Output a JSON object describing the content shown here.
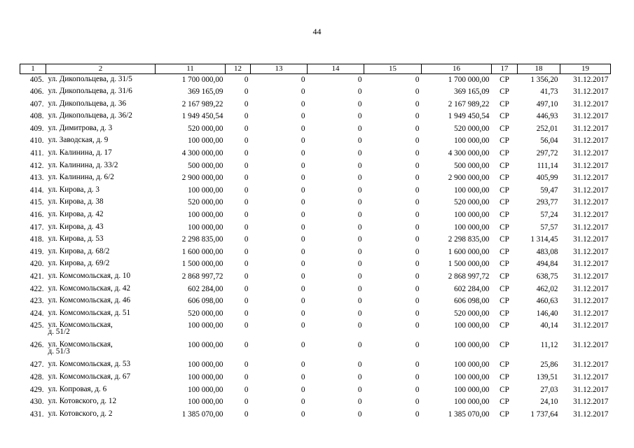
{
  "page_number": "44",
  "header_cells": [
    "1",
    "2",
    "11",
    "12",
    "13",
    "14",
    "15",
    "16",
    "17",
    "18",
    "19"
  ],
  "rows": [
    {
      "n": "405.",
      "addr": "ул. Дикопольцева, д. 31/5",
      "c11": "1 700 000,00",
      "c12": "0",
      "c13": "0",
      "c14": "0",
      "c15": "0",
      "c16": "1 700 000,00",
      "c17": "СР",
      "c18": "1 356,20",
      "c19": "31.12.2017"
    },
    {
      "n": "406.",
      "addr": "ул. Дикопольцева, д. 31/6",
      "c11": "369 165,09",
      "c12": "0",
      "c13": "0",
      "c14": "0",
      "c15": "0",
      "c16": "369 165,09",
      "c17": "СР",
      "c18": "41,73",
      "c19": "31.12.2017"
    },
    {
      "n": "407.",
      "addr": "ул. Дикопольцева, д. 36",
      "c11": "2 167 989,22",
      "c12": "0",
      "c13": "0",
      "c14": "0",
      "c15": "0",
      "c16": "2 167 989,22",
      "c17": "СР",
      "c18": "497,10",
      "c19": "31.12.2017"
    },
    {
      "n": "408.",
      "addr": "ул. Дикопольцева, д. 36/2",
      "c11": "1 949 450,54",
      "c12": "0",
      "c13": "0",
      "c14": "0",
      "c15": "0",
      "c16": "1 949 450,54",
      "c17": "СР",
      "c18": "446,93",
      "c19": "31.12.2017"
    },
    {
      "n": "409.",
      "addr": "ул. Димитрова, д. 3",
      "c11": "520 000,00",
      "c12": "0",
      "c13": "0",
      "c14": "0",
      "c15": "0",
      "c16": "520 000,00",
      "c17": "СР",
      "c18": "252,01",
      "c19": "31.12.2017"
    },
    {
      "n": "410.",
      "addr": "ул. Заводская, д. 9",
      "c11": "100 000,00",
      "c12": "0",
      "c13": "0",
      "c14": "0",
      "c15": "0",
      "c16": "100 000,00",
      "c17": "СР",
      "c18": "56,04",
      "c19": "31.12.2017"
    },
    {
      "n": "411.",
      "addr": "ул. Калинина, д. 17",
      "c11": "4 300 000,00",
      "c12": "0",
      "c13": "0",
      "c14": "0",
      "c15": "0",
      "c16": "4 300 000,00",
      "c17": "СР",
      "c18": "297,72",
      "c19": "31.12.2017"
    },
    {
      "n": "412.",
      "addr": "ул. Калинина, д. 33/2",
      "c11": "500 000,00",
      "c12": "0",
      "c13": "0",
      "c14": "0",
      "c15": "0",
      "c16": "500 000,00",
      "c17": "СР",
      "c18": "111,14",
      "c19": "31.12.2017"
    },
    {
      "n": "413.",
      "addr": "ул. Калинина, д. 6/2",
      "c11": "2 900 000,00",
      "c12": "0",
      "c13": "0",
      "c14": "0",
      "c15": "0",
      "c16": "2 900 000,00",
      "c17": "СР",
      "c18": "405,99",
      "c19": "31.12.2017"
    },
    {
      "n": "414.",
      "addr": "ул. Кирова, д. 3",
      "c11": "100 000,00",
      "c12": "0",
      "c13": "0",
      "c14": "0",
      "c15": "0",
      "c16": "100 000,00",
      "c17": "СР",
      "c18": "59,47",
      "c19": "31.12.2017"
    },
    {
      "n": "415.",
      "addr": "ул. Кирова, д. 38",
      "c11": "520 000,00",
      "c12": "0",
      "c13": "0",
      "c14": "0",
      "c15": "0",
      "c16": "520 000,00",
      "c17": "СР",
      "c18": "293,77",
      "c19": "31.12.2017"
    },
    {
      "n": "416.",
      "addr": "ул. Кирова, д. 42",
      "c11": "100 000,00",
      "c12": "0",
      "c13": "0",
      "c14": "0",
      "c15": "0",
      "c16": "100 000,00",
      "c17": "СР",
      "c18": "57,24",
      "c19": "31.12.2017"
    },
    {
      "n": "417.",
      "addr": "ул. Кирова, д. 43",
      "c11": "100 000,00",
      "c12": "0",
      "c13": "0",
      "c14": "0",
      "c15": "0",
      "c16": "100 000,00",
      "c17": "СР",
      "c18": "57,57",
      "c19": "31.12.2017"
    },
    {
      "n": "418.",
      "addr": "ул. Кирова, д. 53",
      "c11": "2 298 835,00",
      "c12": "0",
      "c13": "0",
      "c14": "0",
      "c15": "0",
      "c16": "2 298 835,00",
      "c17": "СР",
      "c18": "1 314,45",
      "c19": "31.12.2017"
    },
    {
      "n": "419.",
      "addr": "ул. Кирова, д. 68/2",
      "c11": "1 600 000,00",
      "c12": "0",
      "c13": "0",
      "c14": "0",
      "c15": "0",
      "c16": "1 600 000,00",
      "c17": "СР",
      "c18": "483,08",
      "c19": "31.12.2017"
    },
    {
      "n": "420.",
      "addr": "ул. Кирова, д. 69/2",
      "c11": "1 500 000,00",
      "c12": "0",
      "c13": "0",
      "c14": "0",
      "c15": "0",
      "c16": "1 500 000,00",
      "c17": "СР",
      "c18": "494,84",
      "c19": "31.12.2017"
    },
    {
      "n": "421.",
      "addr": "ул. Комсомольская, д. 10",
      "c11": "2 868 997,72",
      "c12": "0",
      "c13": "0",
      "c14": "0",
      "c15": "0",
      "c16": "2 868 997,72",
      "c17": "СР",
      "c18": "638,75",
      "c19": "31.12.2017"
    },
    {
      "n": "422.",
      "addr": "ул. Комсомольская, д. 42",
      "c11": "602 284,00",
      "c12": "0",
      "c13": "0",
      "c14": "0",
      "c15": "0",
      "c16": "602 284,00",
      "c17": "СР",
      "c18": "462,02",
      "c19": "31.12.2017"
    },
    {
      "n": "423.",
      "addr": "ул. Комсомольская, д. 46",
      "c11": "606 098,00",
      "c12": "0",
      "c13": "0",
      "c14": "0",
      "c15": "0",
      "c16": "606 098,00",
      "c17": "СР",
      "c18": "460,63",
      "c19": "31.12.2017"
    },
    {
      "n": "424.",
      "addr": "ул. Комсомольская, д. 51",
      "c11": "520 000,00",
      "c12": "0",
      "c13": "0",
      "c14": "0",
      "c15": "0",
      "c16": "520 000,00",
      "c17": "СР",
      "c18": "146,40",
      "c19": "31.12.2017"
    },
    {
      "n": "425.",
      "addr": "ул. Комсомольская,\nд. 51/2",
      "c11": "100 000,00",
      "c12": "0",
      "c13": "0",
      "c14": "0",
      "c15": "0",
      "c16": "100 000,00",
      "c17": "СР",
      "c18": "40,14",
      "c19": "31.12.2017"
    },
    {
      "n": "426.",
      "addr": "ул. Комсомольская,\nд. 51/3",
      "c11": "100 000,00",
      "c12": "0",
      "c13": "0",
      "c14": "0",
      "c15": "0",
      "c16": "100 000,00",
      "c17": "СР",
      "c18": "11,12",
      "c19": "31.12.2017"
    },
    {
      "n": "427.",
      "addr": "ул. Комсомольская, д. 53",
      "c11": "100 000,00",
      "c12": "0",
      "c13": "0",
      "c14": "0",
      "c15": "0",
      "c16": "100 000,00",
      "c17": "СР",
      "c18": "25,86",
      "c19": "31.12.2017"
    },
    {
      "n": "428.",
      "addr": "ул. Комсомольская, д. 67",
      "c11": "100 000,00",
      "c12": "0",
      "c13": "0",
      "c14": "0",
      "c15": "0",
      "c16": "100 000,00",
      "c17": "СР",
      "c18": "139,51",
      "c19": "31.12.2017"
    },
    {
      "n": "429.",
      "addr": "ул. Копровая, д. 6",
      "c11": "100 000,00",
      "c12": "0",
      "c13": "0",
      "c14": "0",
      "c15": "0",
      "c16": "100 000,00",
      "c17": "СР",
      "c18": "27,03",
      "c19": "31.12.2017"
    },
    {
      "n": "430.",
      "addr": "ул. Котовского, д. 12",
      "c11": "100 000,00",
      "c12": "0",
      "c13": "0",
      "c14": "0",
      "c15": "0",
      "c16": "100 000,00",
      "c17": "СР",
      "c18": "24,10",
      "c19": "31.12.2017"
    },
    {
      "n": "431.",
      "addr": "ул. Котовского, д. 2",
      "c11": "1 385 070,00",
      "c12": "0",
      "c13": "0",
      "c14": "0",
      "c15": "0",
      "c16": "1 385 070,00",
      "c17": "СР",
      "c18": "1 737,64",
      "c19": "31.12.2017"
    }
  ]
}
